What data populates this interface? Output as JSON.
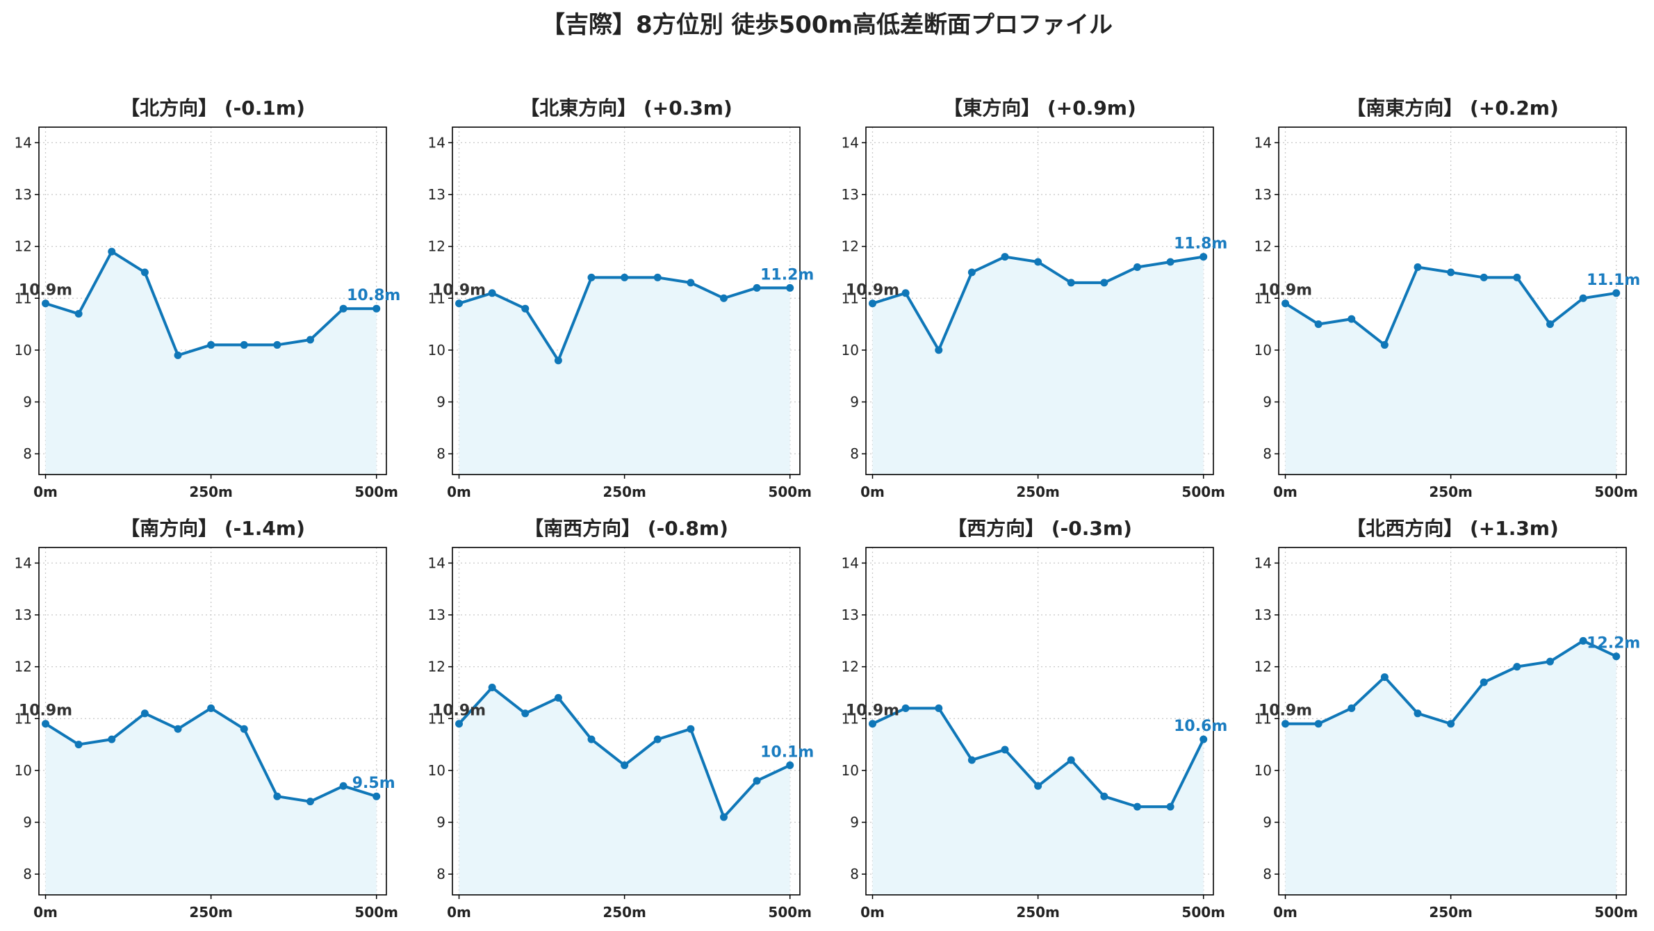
{
  "title": "【吉際】8方位別 徒歩500m高低差断面プロファイル",
  "colors": {
    "line": "#0f77b8",
    "fill": "#e9f6fb",
    "grid": "#c8c8c8",
    "text": "#222222",
    "start_label": "#333333",
    "end_label": "#1a7cc0"
  },
  "chart_data": [
    {
      "type": "area",
      "title": "【北方向】 (-0.1m)",
      "x": [
        0,
        50,
        100,
        150,
        200,
        250,
        300,
        350,
        400,
        450,
        500
      ],
      "values": [
        10.9,
        10.7,
        11.9,
        11.5,
        9.9,
        10.1,
        10.1,
        10.1,
        10.2,
        10.8,
        10.8
      ],
      "start_label": "10.9m",
      "end_label": "10.8m"
    },
    {
      "type": "area",
      "title": "【北東方向】 (+0.3m)",
      "x": [
        0,
        50,
        100,
        150,
        200,
        250,
        300,
        350,
        400,
        450,
        500
      ],
      "values": [
        10.9,
        11.1,
        10.8,
        9.8,
        11.4,
        11.4,
        11.4,
        11.3,
        11.0,
        11.2,
        11.2
      ],
      "start_label": "10.9m",
      "end_label": "11.2m"
    },
    {
      "type": "area",
      "title": "【東方向】 (+0.9m)",
      "x": [
        0,
        50,
        100,
        150,
        200,
        250,
        300,
        350,
        400,
        450,
        500
      ],
      "values": [
        10.9,
        11.1,
        10.0,
        11.5,
        11.8,
        11.7,
        11.3,
        11.3,
        11.6,
        11.7,
        11.8
      ],
      "start_label": "10.9m",
      "end_label": "11.8m"
    },
    {
      "type": "area",
      "title": "【南東方向】 (+0.2m)",
      "x": [
        0,
        50,
        100,
        150,
        200,
        250,
        300,
        350,
        400,
        450,
        500
      ],
      "values": [
        10.9,
        10.5,
        10.6,
        10.1,
        11.6,
        11.5,
        11.4,
        11.4,
        10.5,
        11.0,
        11.1
      ],
      "start_label": "10.9m",
      "end_label": "11.1m"
    },
    {
      "type": "area",
      "title": "【南方向】 (-1.4m)",
      "x": [
        0,
        50,
        100,
        150,
        200,
        250,
        300,
        350,
        400,
        450,
        500
      ],
      "values": [
        10.9,
        10.5,
        10.6,
        11.1,
        10.8,
        11.2,
        10.8,
        9.5,
        9.4,
        9.7,
        9.5
      ],
      "start_label": "10.9m",
      "end_label": "9.5m"
    },
    {
      "type": "area",
      "title": "【南西方向】 (-0.8m)",
      "x": [
        0,
        50,
        100,
        150,
        200,
        250,
        300,
        350,
        400,
        450,
        500
      ],
      "values": [
        10.9,
        11.6,
        11.1,
        11.4,
        10.6,
        10.1,
        10.6,
        10.8,
        9.1,
        9.8,
        10.1
      ],
      "start_label": "10.9m",
      "end_label": "10.1m"
    },
    {
      "type": "area",
      "title": "【西方向】 (-0.3m)",
      "x": [
        0,
        50,
        100,
        150,
        200,
        250,
        300,
        350,
        400,
        450,
        500
      ],
      "values": [
        10.9,
        11.2,
        11.2,
        10.2,
        10.4,
        9.7,
        10.2,
        9.5,
        9.3,
        9.3,
        10.6
      ],
      "start_label": "10.9m",
      "end_label": "10.6m"
    },
    {
      "type": "area",
      "title": "【北西方向】 (+1.3m)",
      "x": [
        0,
        50,
        100,
        150,
        200,
        250,
        300,
        350,
        400,
        450,
        500
      ],
      "values": [
        10.9,
        10.9,
        11.2,
        11.8,
        11.1,
        10.9,
        11.7,
        12.0,
        12.1,
        12.5,
        12.2
      ],
      "start_label": "10.9m",
      "end_label": "12.2m"
    }
  ],
  "axes": {
    "xlim": [
      -10,
      515
    ],
    "ylim": [
      7.6,
      14.3
    ],
    "yticks": [
      "8",
      "9",
      "10",
      "11",
      "12",
      "13",
      "14"
    ],
    "xticks": [
      "0m",
      "250m",
      "500m"
    ],
    "grid": true
  }
}
